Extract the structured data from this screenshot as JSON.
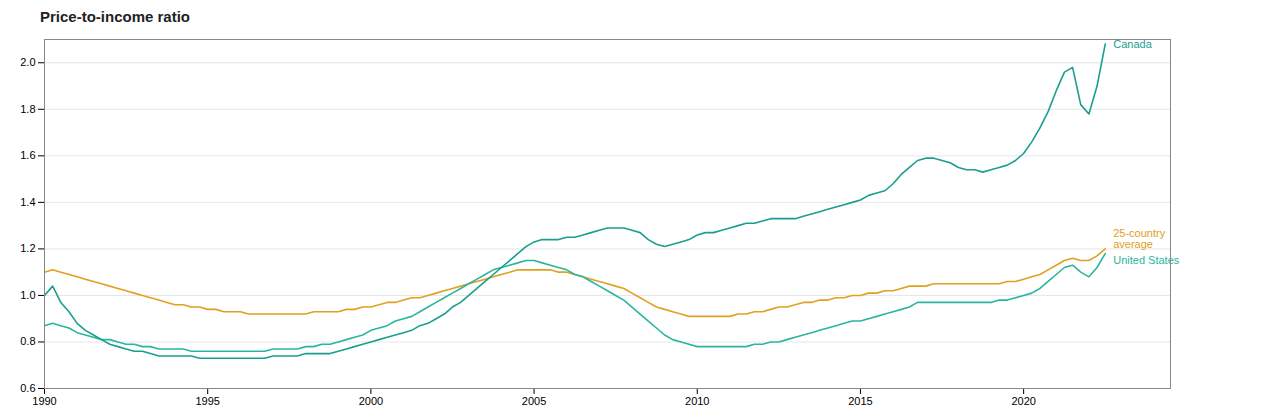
{
  "chart_data": {
    "type": "line",
    "title": "Price-to-income ratio",
    "x": [
      1990.0,
      1990.25,
      1990.5,
      1990.75,
      1991.0,
      1991.25,
      1991.5,
      1991.75,
      1992.0,
      1992.25,
      1992.5,
      1992.75,
      1993.0,
      1993.25,
      1993.5,
      1993.75,
      1994.0,
      1994.25,
      1994.5,
      1994.75,
      1995.0,
      1995.25,
      1995.5,
      1995.75,
      1996.0,
      1996.25,
      1996.5,
      1996.75,
      1997.0,
      1997.25,
      1997.5,
      1997.75,
      1998.0,
      1998.25,
      1998.5,
      1998.75,
      1999.0,
      1999.25,
      1999.5,
      1999.75,
      2000.0,
      2000.25,
      2000.5,
      2000.75,
      2001.0,
      2001.25,
      2001.5,
      2001.75,
      2002.0,
      2002.25,
      2002.5,
      2002.75,
      2003.0,
      2003.25,
      2003.5,
      2003.75,
      2004.0,
      2004.25,
      2004.5,
      2004.75,
      2005.0,
      2005.25,
      2005.5,
      2005.75,
      2006.0,
      2006.25,
      2006.5,
      2006.75,
      2007.0,
      2007.25,
      2007.5,
      2007.75,
      2008.0,
      2008.25,
      2008.5,
      2008.75,
      2009.0,
      2009.25,
      2009.5,
      2009.75,
      2010.0,
      2010.25,
      2010.5,
      2010.75,
      2011.0,
      2011.25,
      2011.5,
      2011.75,
      2012.0,
      2012.25,
      2012.5,
      2012.75,
      2013.0,
      2013.25,
      2013.5,
      2013.75,
      2014.0,
      2014.25,
      2014.5,
      2014.75,
      2015.0,
      2015.25,
      2015.5,
      2015.75,
      2016.0,
      2016.25,
      2016.5,
      2016.75,
      2017.0,
      2017.25,
      2017.5,
      2017.75,
      2018.0,
      2018.25,
      2018.5,
      2018.75,
      2019.0,
      2019.25,
      2019.5,
      2019.75,
      2020.0,
      2020.25,
      2020.5,
      2020.75,
      2021.0,
      2021.25,
      2021.5,
      2021.75,
      2022.0,
      2022.25,
      2022.5
    ],
    "series": [
      {
        "name": "25-country\naverage",
        "color": "#e0a020",
        "values": [
          1.1,
          1.11,
          1.1,
          1.09,
          1.08,
          1.07,
          1.06,
          1.05,
          1.04,
          1.03,
          1.02,
          1.01,
          1.0,
          0.99,
          0.98,
          0.97,
          0.96,
          0.96,
          0.95,
          0.95,
          0.94,
          0.94,
          0.93,
          0.93,
          0.93,
          0.92,
          0.92,
          0.92,
          0.92,
          0.92,
          0.92,
          0.92,
          0.92,
          0.93,
          0.93,
          0.93,
          0.93,
          0.94,
          0.94,
          0.95,
          0.95,
          0.96,
          0.97,
          0.97,
          0.98,
          0.99,
          0.99,
          1.0,
          1.01,
          1.02,
          1.03,
          1.04,
          1.05,
          1.06,
          1.07,
          1.08,
          1.09,
          1.1,
          1.11,
          1.11,
          1.11,
          1.11,
          1.11,
          1.1,
          1.1,
          1.09,
          1.08,
          1.07,
          1.06,
          1.05,
          1.04,
          1.03,
          1.01,
          0.99,
          0.97,
          0.95,
          0.94,
          0.93,
          0.92,
          0.91,
          0.91,
          0.91,
          0.91,
          0.91,
          0.91,
          0.92,
          0.92,
          0.93,
          0.93,
          0.94,
          0.95,
          0.95,
          0.96,
          0.97,
          0.97,
          0.98,
          0.98,
          0.99,
          0.99,
          1.0,
          1.0,
          1.01,
          1.01,
          1.02,
          1.02,
          1.03,
          1.04,
          1.04,
          1.04,
          1.05,
          1.05,
          1.05,
          1.05,
          1.05,
          1.05,
          1.05,
          1.05,
          1.05,
          1.06,
          1.06,
          1.07,
          1.08,
          1.09,
          1.11,
          1.13,
          1.15,
          1.16,
          1.15,
          1.15,
          1.17,
          1.2
        ]
      },
      {
        "name": "United States",
        "color": "#2ab5a0",
        "values": [
          0.87,
          0.88,
          0.87,
          0.86,
          0.84,
          0.83,
          0.82,
          0.81,
          0.81,
          0.8,
          0.79,
          0.79,
          0.78,
          0.78,
          0.77,
          0.77,
          0.77,
          0.77,
          0.76,
          0.76,
          0.76,
          0.76,
          0.76,
          0.76,
          0.76,
          0.76,
          0.76,
          0.76,
          0.77,
          0.77,
          0.77,
          0.77,
          0.78,
          0.78,
          0.79,
          0.79,
          0.8,
          0.81,
          0.82,
          0.83,
          0.85,
          0.86,
          0.87,
          0.89,
          0.9,
          0.91,
          0.93,
          0.95,
          0.97,
          0.99,
          1.01,
          1.03,
          1.05,
          1.07,
          1.09,
          1.11,
          1.12,
          1.13,
          1.14,
          1.15,
          1.15,
          1.14,
          1.13,
          1.12,
          1.11,
          1.09,
          1.08,
          1.06,
          1.04,
          1.02,
          1.0,
          0.98,
          0.95,
          0.92,
          0.89,
          0.86,
          0.83,
          0.81,
          0.8,
          0.79,
          0.78,
          0.78,
          0.78,
          0.78,
          0.78,
          0.78,
          0.78,
          0.79,
          0.79,
          0.8,
          0.8,
          0.81,
          0.82,
          0.83,
          0.84,
          0.85,
          0.86,
          0.87,
          0.88,
          0.89,
          0.89,
          0.9,
          0.91,
          0.92,
          0.93,
          0.94,
          0.95,
          0.97,
          0.97,
          0.97,
          0.97,
          0.97,
          0.97,
          0.97,
          0.97,
          0.97,
          0.97,
          0.98,
          0.98,
          0.99,
          1.0,
          1.01,
          1.03,
          1.06,
          1.09,
          1.12,
          1.13,
          1.1,
          1.08,
          1.12,
          1.18
        ]
      },
      {
        "name": "Canada",
        "color": "#1a9e8f",
        "values": [
          1.0,
          1.04,
          0.97,
          0.93,
          0.88,
          0.85,
          0.83,
          0.81,
          0.79,
          0.78,
          0.77,
          0.76,
          0.76,
          0.75,
          0.74,
          0.74,
          0.74,
          0.74,
          0.74,
          0.73,
          0.73,
          0.73,
          0.73,
          0.73,
          0.73,
          0.73,
          0.73,
          0.73,
          0.74,
          0.74,
          0.74,
          0.74,
          0.75,
          0.75,
          0.75,
          0.75,
          0.76,
          0.77,
          0.78,
          0.79,
          0.8,
          0.81,
          0.82,
          0.83,
          0.84,
          0.85,
          0.87,
          0.88,
          0.9,
          0.92,
          0.95,
          0.97,
          1.0,
          1.03,
          1.06,
          1.09,
          1.12,
          1.15,
          1.18,
          1.21,
          1.23,
          1.24,
          1.24,
          1.24,
          1.25,
          1.25,
          1.26,
          1.27,
          1.28,
          1.29,
          1.29,
          1.29,
          1.28,
          1.27,
          1.24,
          1.22,
          1.21,
          1.22,
          1.23,
          1.24,
          1.26,
          1.27,
          1.27,
          1.28,
          1.29,
          1.3,
          1.31,
          1.31,
          1.32,
          1.33,
          1.33,
          1.33,
          1.33,
          1.34,
          1.35,
          1.36,
          1.37,
          1.38,
          1.39,
          1.4,
          1.41,
          1.43,
          1.44,
          1.45,
          1.48,
          1.52,
          1.55,
          1.58,
          1.59,
          1.59,
          1.58,
          1.57,
          1.55,
          1.54,
          1.54,
          1.53,
          1.54,
          1.55,
          1.56,
          1.58,
          1.61,
          1.66,
          1.72,
          1.79,
          1.88,
          1.96,
          1.98,
          1.82,
          1.78,
          1.9,
          2.08
        ]
      }
    ],
    "xlim": [
      1990,
      2024.5
    ],
    "xticks": [
      1990,
      1995,
      2000,
      2005,
      2010,
      2015,
      2020
    ],
    "ylim": [
      0.6,
      2.1
    ],
    "yticks": [
      0.6,
      0.8,
      {
        "value": 1.0,
        "label": "1.0"
      },
      1.2,
      1.4,
      1.6,
      1.8,
      {
        "value": 2.0,
        "label": "2.0"
      }
    ],
    "grid": true
  }
}
